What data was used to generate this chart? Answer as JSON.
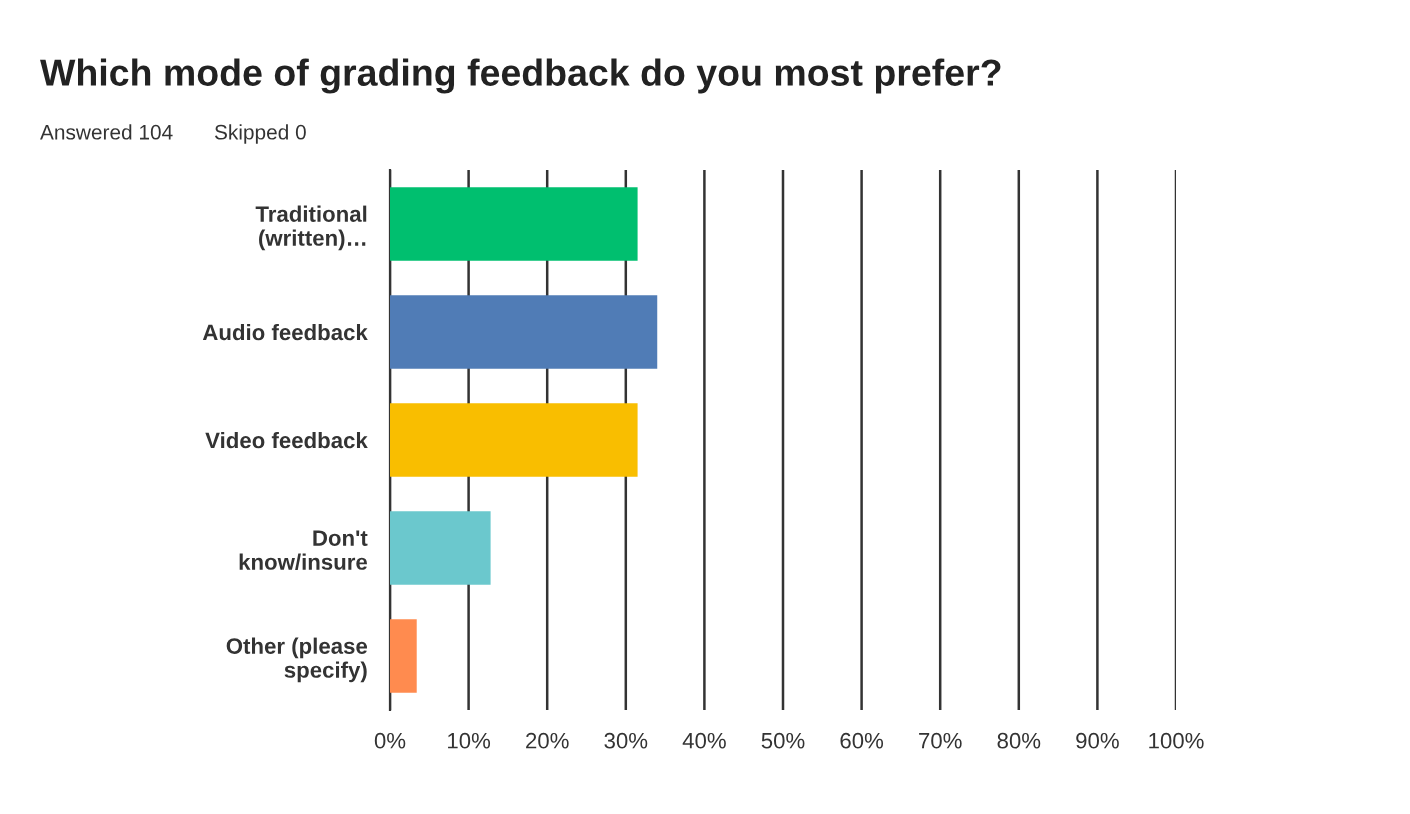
{
  "chart_data": {
    "type": "bar",
    "orientation": "horizontal",
    "title": "Which mode of grading feedback do you most prefer?",
    "annotations": [
      "Answered 104",
      "Skipped 0"
    ],
    "categories": [
      "Traditional\n(written)…",
      "Audio feedback",
      "Video feedback",
      "Don't\nknow/insure",
      "Other (please\nspecify)"
    ],
    "values": [
      31.5,
      34,
      31.5,
      12.8,
      3.4
    ],
    "colors": [
      "#00bf6f",
      "#507cb6",
      "#f9be00",
      "#6bc8cd",
      "#ff8b4f"
    ],
    "xlim": [
      0,
      100
    ],
    "xticks": [
      {
        "value": 0,
        "label": "0%"
      },
      {
        "value": 10,
        "label": "10%"
      },
      {
        "value": 20,
        "label": "20%"
      },
      {
        "value": 30,
        "label": "30%"
      },
      {
        "value": 40,
        "label": "40%"
      },
      {
        "value": 50,
        "label": "50%"
      },
      {
        "value": 60,
        "label": "60%"
      },
      {
        "value": 70,
        "label": "70%"
      },
      {
        "value": 80,
        "label": "80%"
      },
      {
        "value": 90,
        "label": "90%"
      },
      {
        "value": 100,
        "label": "100%"
      }
    ],
    "grid": "x"
  }
}
